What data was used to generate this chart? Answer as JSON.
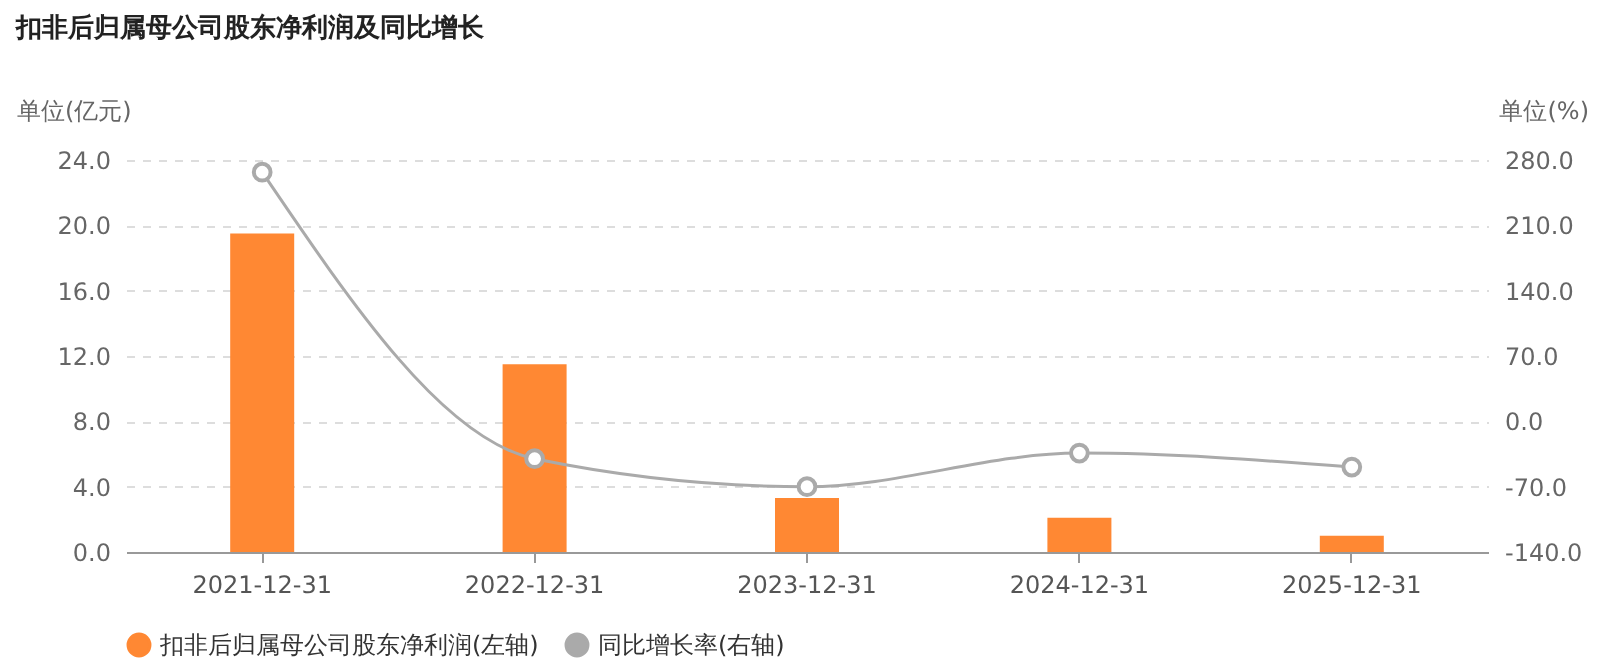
{
  "chart_data": {
    "type": "bar",
    "title": "扣非后归属母公司股东净利润及同比增长",
    "categories": [
      "2021-12-31",
      "2022-12-31",
      "2023-12-31",
      "2024-12-31",
      "2025-12-31"
    ],
    "series": [
      {
        "name": "扣非后归属母公司股东净利润(左轴)",
        "color": "#ff8833",
        "values": [
          19.5,
          11.5,
          3.3,
          2.1,
          1.0
        ]
      },
      {
        "name": "同比增长率(右轴)",
        "type": "line",
        "axis": "y2",
        "color": "#aaaaaa",
        "marker": "circle",
        "line_style": "solid",
        "values": [
          267,
          -40,
          -70,
          -34,
          -49
        ]
      }
    ],
    "ylabel": "单位(亿元)",
    "y2label": "单位(%)",
    "ylim": [
      0,
      24
    ],
    "yticks": [
      {
        "value": 0,
        "label": "0.0"
      },
      {
        "value": 4,
        "label": "4.0"
      },
      {
        "value": 8,
        "label": "8.0"
      },
      {
        "value": 12,
        "label": "12.0"
      },
      {
        "value": 16,
        "label": "16.0"
      },
      {
        "value": 20,
        "label": "20.0"
      },
      {
        "value": 24,
        "label": "24.0"
      }
    ],
    "y2lim": [
      -140,
      280
    ],
    "y2ticks": [
      {
        "value": -140,
        "label": "-140.0"
      },
      {
        "value": -70,
        "label": "-70.0"
      },
      {
        "value": 0,
        "label": "0.0"
      },
      {
        "value": 70,
        "label": "70.0"
      },
      {
        "value": 140,
        "label": "140.0"
      },
      {
        "value": 210,
        "label": "210.0"
      },
      {
        "value": 280,
        "label": "280.0"
      }
    ],
    "grid": "y",
    "legend": "bottom"
  }
}
